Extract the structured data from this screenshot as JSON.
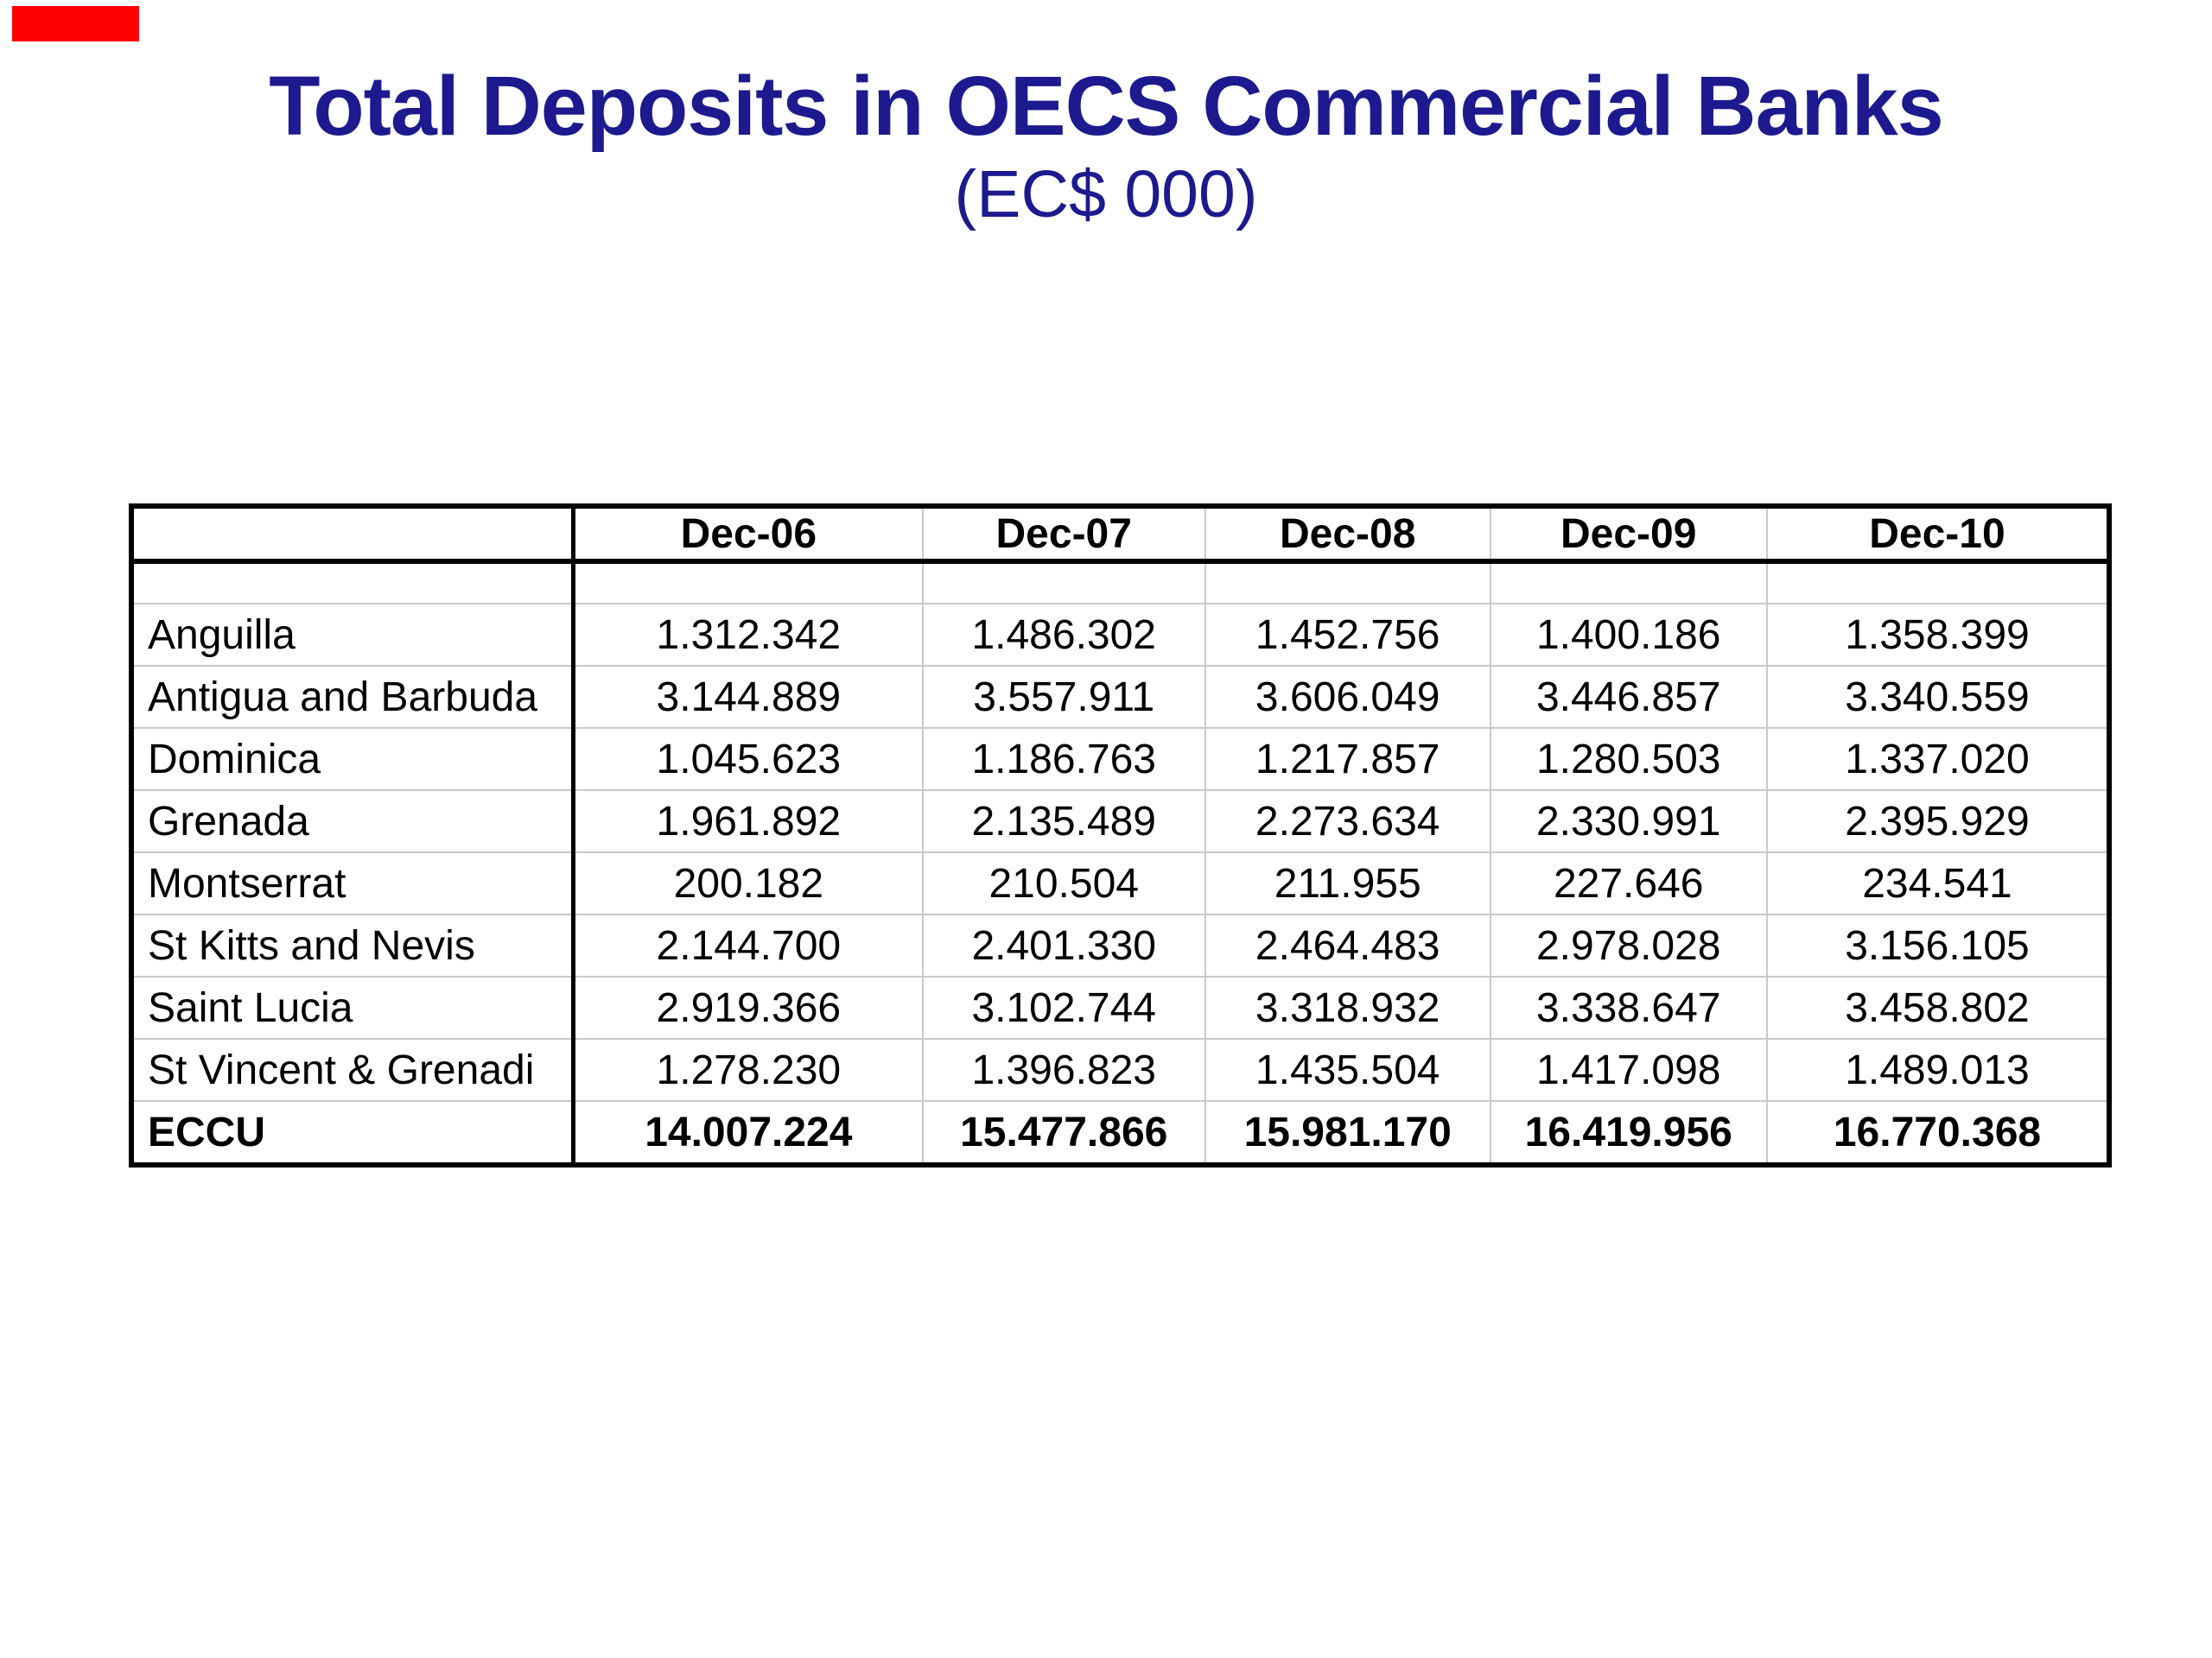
{
  "slide": {
    "background_color": "#ffffff",
    "marker_color": "#ff0000"
  },
  "header": {
    "title": "Total Deposits in OECS Commercial Banks",
    "subtitle": "(EC$ 000)",
    "title_color": "#1c1a8e"
  },
  "chart_data": {
    "type": "table",
    "title": "Total Deposits in OECS Commercial Banks",
    "subtitle": "(EC$ 000)",
    "unit": "EC$ 000",
    "columns": [
      "",
      "Dec-06",
      "Dec-07",
      "Dec-08",
      "Dec-09",
      "Dec-10"
    ],
    "rows": [
      {
        "label": "Anguilla",
        "bold": false,
        "values": [
          "1.312.342",
          "1.486.302",
          "1.452.756",
          "1.400.186",
          "1.358.399"
        ]
      },
      {
        "label": "Antigua and Barbuda",
        "bold": false,
        "values": [
          "3.144.889",
          "3.557.911",
          "3.606.049",
          "3.446.857",
          "3.340.559"
        ]
      },
      {
        "label": "Dominica",
        "bold": false,
        "values": [
          "1.045.623",
          "1.186.763",
          "1.217.857",
          "1.280.503",
          "1.337.020"
        ]
      },
      {
        "label": "Grenada",
        "bold": false,
        "values": [
          "1.961.892",
          "2.135.489",
          "2.273.634",
          "2.330.991",
          "2.395.929"
        ]
      },
      {
        "label": "Montserrat",
        "bold": false,
        "values": [
          "200.182",
          "210.504",
          "211.955",
          "227.646",
          "234.541"
        ]
      },
      {
        "label": "St Kitts and Nevis",
        "bold": false,
        "values": [
          "2.144.700",
          "2.401.330",
          "2.464.483",
          "2.978.028",
          "3.156.105"
        ]
      },
      {
        "label": "Saint Lucia",
        "bold": false,
        "values": [
          "2.919.366",
          "3.102.744",
          "3.318.932",
          "3.338.647",
          "3.458.802"
        ]
      },
      {
        "label": "St Vincent & Grenadi",
        "bold": false,
        "values": [
          "1.278.230",
          "1.396.823",
          "1.435.504",
          "1.417.098",
          "1.489.013"
        ]
      },
      {
        "label": "ECCU",
        "bold": true,
        "values": [
          "14.007.224",
          "15.477.866",
          "15.981.170",
          "16.419.956",
          "16.770.368"
        ]
      }
    ],
    "grid_color": "#c9c9c9",
    "border_color": "#000000",
    "legend_position": "none",
    "grid": true
  }
}
